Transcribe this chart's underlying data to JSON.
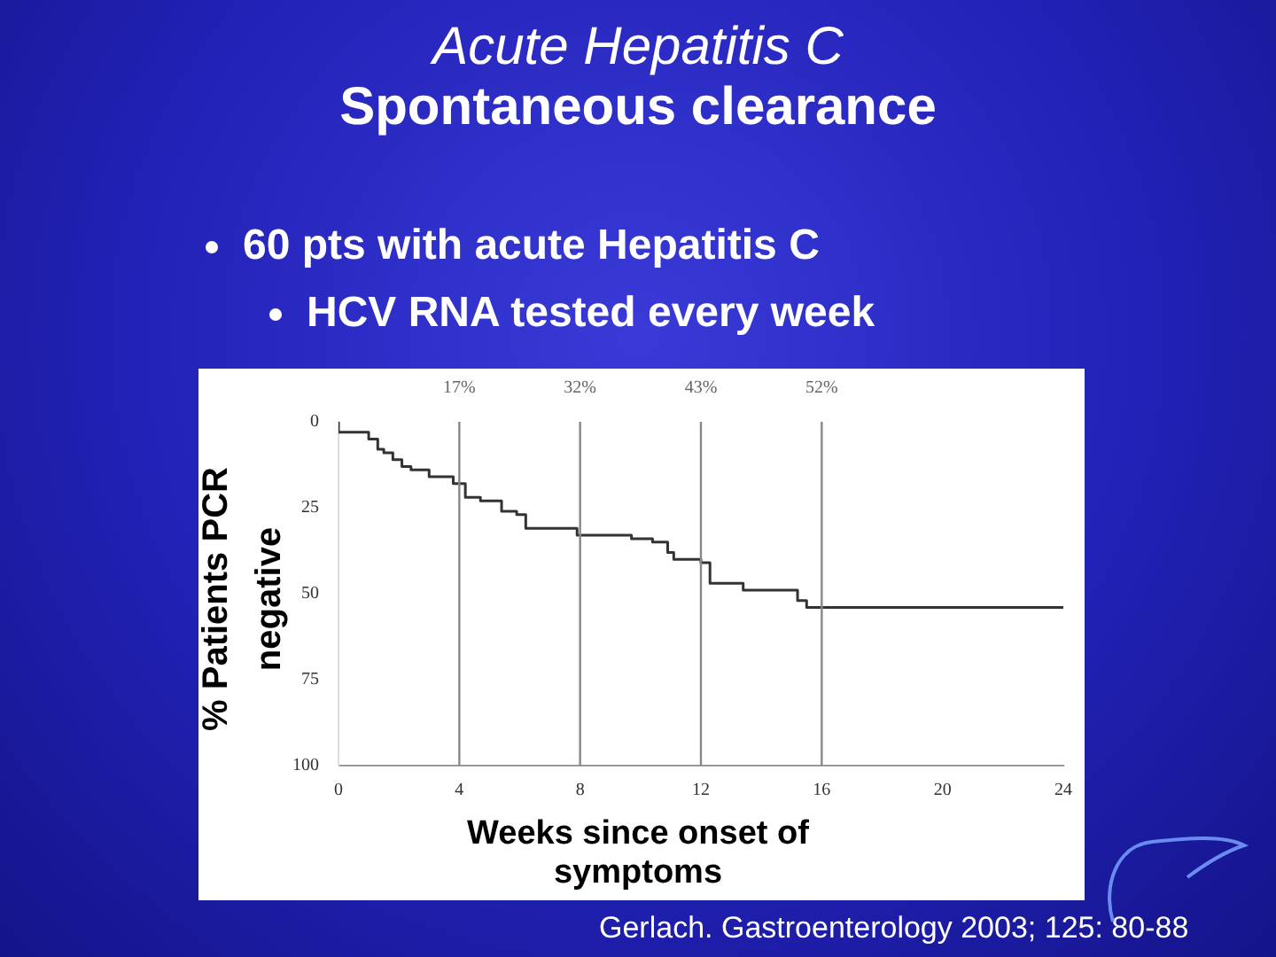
{
  "chart_data": {
    "type": "step",
    "title": "Acute Hepatitis C",
    "subtitle": "Spontaneous clearance",
    "annotations": [
      "60 pts with acute Hepatitis C",
      "HCV RNA tested every week",
      "Gerlach. Gastroenterology 2003; 125: 80-88",
      "17%",
      "32%",
      "43%",
      "52%"
    ],
    "xlabel": "Weeks since onset of symptoms",
    "ylabel": "% Patients PCR negative",
    "x": [
      0,
      1.0,
      1.3,
      1.5,
      1.8,
      2.1,
      2.4,
      3.0,
      3.8,
      4.2,
      4.7,
      5.4,
      5.9,
      6.2,
      7.9,
      9.7,
      10.4,
      10.9,
      11.1,
      12.0,
      12.3,
      13.4,
      15.2,
      15.5,
      15.9,
      24
    ],
    "series": [
      {
        "color": "#333333",
        "values": [
          0,
          3,
          5,
          8,
          9,
          11,
          13,
          14,
          16,
          18,
          22,
          23,
          26,
          27,
          31,
          33,
          34,
          35,
          38,
          40,
          41,
          47,
          49,
          52,
          54,
          54
        ]
      }
    ],
    "xlim": [
      0,
      24
    ],
    "xticks": [
      0,
      4,
      8,
      12,
      16,
      20,
      24
    ],
    "ylim": [
      100,
      0
    ],
    "yticks": [
      0,
      25,
      50,
      75,
      100
    ],
    "ref_lines": [
      {
        "axis": "x",
        "value": 4,
        "color": "#888888"
      },
      {
        "axis": "x",
        "value": 8,
        "color": "#888888"
      },
      {
        "axis": "x",
        "value": 12,
        "color": "#888888"
      },
      {
        "axis": "x",
        "value": 16,
        "color": "#888888"
      }
    ],
    "grid": false,
    "legend": false
  }
}
